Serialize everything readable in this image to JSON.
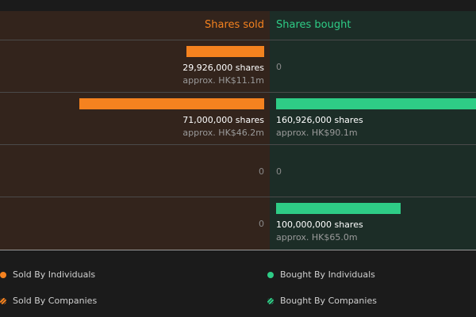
{
  "chart_data": {
    "type": "bar",
    "orientation": "horizontal-diverging",
    "max_shares": 161000000,
    "headers": {
      "sold": "Shares sold",
      "bought": "Shares bought"
    },
    "rows": [
      {
        "sold": {
          "value": 29926000,
          "shares_label": "29,926,000 shares",
          "approx_label": "approx. HK$11.1m"
        },
        "bought": {
          "value": 0,
          "shares_label": "0",
          "approx_label": ""
        }
      },
      {
        "sold": {
          "value": 71000000,
          "shares_label": "71,000,000 shares",
          "approx_label": "approx. HK$46.2m"
        },
        "bought": {
          "value": 160926000,
          "shares_label": "160,926,000 shares",
          "approx_label": "approx. HK$90.1m"
        }
      },
      {
        "sold": {
          "value": 0,
          "shares_label": "0",
          "approx_label": ""
        },
        "bought": {
          "value": 0,
          "shares_label": "0",
          "approx_label": ""
        }
      },
      {
        "sold": {
          "value": 0,
          "shares_label": "0",
          "approx_label": ""
        },
        "bought": {
          "value": 100000000,
          "shares_label": "100,000,000 shares",
          "approx_label": "approx. HK$65.0m"
        }
      }
    ],
    "legend": [
      {
        "label": "Sold By Individuals",
        "color": "#f5821f",
        "style": "solid"
      },
      {
        "label": "Bought By Individuals",
        "color": "#2ecc86",
        "style": "solid"
      },
      {
        "label": "Sold By Companies",
        "color": "#f5821f",
        "style": "hatched"
      },
      {
        "label": "Bought By Companies",
        "color": "#2ecc86",
        "style": "hatched"
      }
    ],
    "colors": {
      "sold": "#f5821f",
      "bought": "#2ecc86"
    }
  }
}
